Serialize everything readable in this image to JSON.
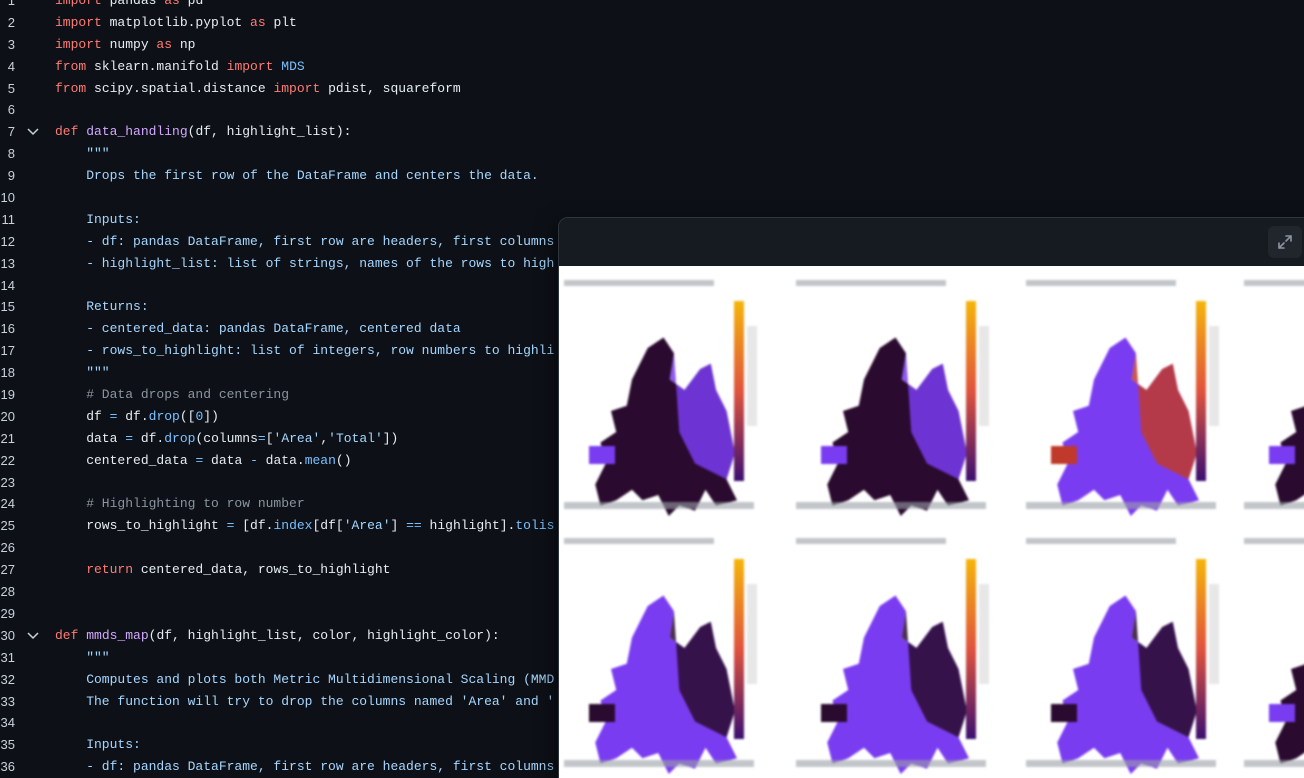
{
  "editor": {
    "lines": [
      {
        "n": "1",
        "tokens": [
          [
            "kw",
            "import"
          ],
          [
            "p",
            " pandas "
          ],
          [
            "kw",
            "as"
          ],
          [
            "p",
            " pd"
          ]
        ]
      },
      {
        "n": "2",
        "tokens": [
          [
            "kw",
            "import"
          ],
          [
            "p",
            " matplotlib.pyplot "
          ],
          [
            "kw",
            "as"
          ],
          [
            "p",
            " plt"
          ]
        ]
      },
      {
        "n": "3",
        "tokens": [
          [
            "kw",
            "import"
          ],
          [
            "p",
            " numpy "
          ],
          [
            "kw",
            "as"
          ],
          [
            "p",
            " np"
          ]
        ]
      },
      {
        "n": "4",
        "tokens": [
          [
            "kw",
            "from"
          ],
          [
            "p",
            " sklearn.manifold "
          ],
          [
            "kw",
            "import"
          ],
          [
            "bi",
            " MDS"
          ]
        ]
      },
      {
        "n": "5",
        "tokens": [
          [
            "kw",
            "from"
          ],
          [
            "p",
            " scipy.spatial.distance "
          ],
          [
            "kw",
            "import"
          ],
          [
            "p",
            " pdist, squareform"
          ]
        ]
      },
      {
        "n": "6",
        "tokens": []
      },
      {
        "n": "7",
        "fold": true,
        "tokens": [
          [
            "kw",
            "def"
          ],
          [
            "p",
            " "
          ],
          [
            "fn",
            "data_handling"
          ],
          [
            "p",
            "(df, highlight_list):"
          ]
        ]
      },
      {
        "n": "8",
        "tokens": [
          [
            "doc",
            "    \"\"\""
          ]
        ]
      },
      {
        "n": "9",
        "tokens": [
          [
            "doc",
            "    Drops the first row of the DataFrame and centers the data."
          ]
        ]
      },
      {
        "n": "10",
        "tokens": []
      },
      {
        "n": "11",
        "tokens": [
          [
            "doc",
            "    Inputs:"
          ]
        ]
      },
      {
        "n": "12",
        "tokens": [
          [
            "doc",
            "    - df: pandas DataFrame, first row are headers, first columns"
          ]
        ]
      },
      {
        "n": "13",
        "tokens": [
          [
            "doc",
            "    - highlight_list: list of strings, names of the rows to high"
          ]
        ]
      },
      {
        "n": "14",
        "tokens": []
      },
      {
        "n": "15",
        "tokens": [
          [
            "doc",
            "    Returns:"
          ]
        ]
      },
      {
        "n": "16",
        "tokens": [
          [
            "doc",
            "    - centered_data: pandas DataFrame, centered data"
          ]
        ]
      },
      {
        "n": "17",
        "tokens": [
          [
            "doc",
            "    - rows_to_highlight: list of integers, row numbers to highli"
          ]
        ]
      },
      {
        "n": "18",
        "tokens": [
          [
            "doc",
            "    \"\"\""
          ]
        ]
      },
      {
        "n": "19",
        "tokens": [
          [
            "cm",
            "    # Data drops and centering"
          ]
        ]
      },
      {
        "n": "20",
        "tokens": [
          [
            "p",
            "    df "
          ],
          [
            "op",
            "="
          ],
          [
            "p",
            " df."
          ],
          [
            "bi",
            "drop"
          ],
          [
            "p",
            "(["
          ],
          [
            "num",
            "0"
          ],
          [
            "p",
            "])"
          ]
        ]
      },
      {
        "n": "21",
        "tokens": [
          [
            "p",
            "    data "
          ],
          [
            "op",
            "="
          ],
          [
            "p",
            " df."
          ],
          [
            "bi",
            "drop"
          ],
          [
            "p",
            "(columns"
          ],
          [
            "op",
            "="
          ],
          [
            "p",
            "["
          ],
          [
            "str",
            "'Area'"
          ],
          [
            "p",
            ","
          ],
          [
            "str",
            "'Total'"
          ],
          [
            "p",
            "])"
          ]
        ]
      },
      {
        "n": "22",
        "tokens": [
          [
            "p",
            "    centered_data "
          ],
          [
            "op",
            "="
          ],
          [
            "p",
            " data "
          ],
          [
            "op",
            "-"
          ],
          [
            "p",
            " data."
          ],
          [
            "bi",
            "mean"
          ],
          [
            "p",
            "()"
          ]
        ]
      },
      {
        "n": "23",
        "tokens": []
      },
      {
        "n": "24",
        "tokens": [
          [
            "cm",
            "    # Highlighting to row number"
          ]
        ]
      },
      {
        "n": "25",
        "tokens": [
          [
            "p",
            "    rows_to_highlight "
          ],
          [
            "op",
            "="
          ],
          [
            "p",
            " [df."
          ],
          [
            "bi",
            "index"
          ],
          [
            "p",
            "[df["
          ],
          [
            "str",
            "'Area'"
          ],
          [
            "p",
            "] "
          ],
          [
            "op",
            "=="
          ],
          [
            "p",
            " highlight]."
          ],
          [
            "bi",
            "tolis"
          ]
        ]
      },
      {
        "n": "26",
        "tokens": []
      },
      {
        "n": "27",
        "tokens": [
          [
            "kw",
            "    return"
          ],
          [
            "p",
            " centered_data, rows_to_highlight"
          ]
        ]
      },
      {
        "n": "28",
        "tokens": []
      },
      {
        "n": "29",
        "tokens": []
      },
      {
        "n": "30",
        "fold": true,
        "tokens": [
          [
            "kw",
            "def"
          ],
          [
            "p",
            " "
          ],
          [
            "fn",
            "mmds_map"
          ],
          [
            "p",
            "(df, highlight_list, color, highlight_color):"
          ]
        ]
      },
      {
        "n": "31",
        "tokens": [
          [
            "doc",
            "    \"\"\""
          ]
        ]
      },
      {
        "n": "32",
        "tokens": [
          [
            "doc",
            "    Computes and plots both Metric Multidimensional Scaling (MMD"
          ]
        ]
      },
      {
        "n": "33",
        "tokens": [
          [
            "doc",
            "    The function will try to drop the columns named 'Area' and '"
          ]
        ]
      },
      {
        "n": "34",
        "tokens": []
      },
      {
        "n": "35",
        "tokens": [
          [
            "doc",
            "    Inputs:"
          ]
        ]
      },
      {
        "n": "36",
        "tokens": [
          [
            "doc",
            "    - df: pandas DataFrame, first row are headers, first columns"
          ]
        ]
      }
    ]
  },
  "overlay": {
    "expand_icon": "expand-icon",
    "maps_icon": "europe-map-plot",
    "colors": {
      "background": "#161b22",
      "plot_bg": "#ffffff",
      "map_low": "#2a0a2e",
      "map_mid": "#7a3cf0",
      "map_high": "#f5b50a"
    }
  }
}
